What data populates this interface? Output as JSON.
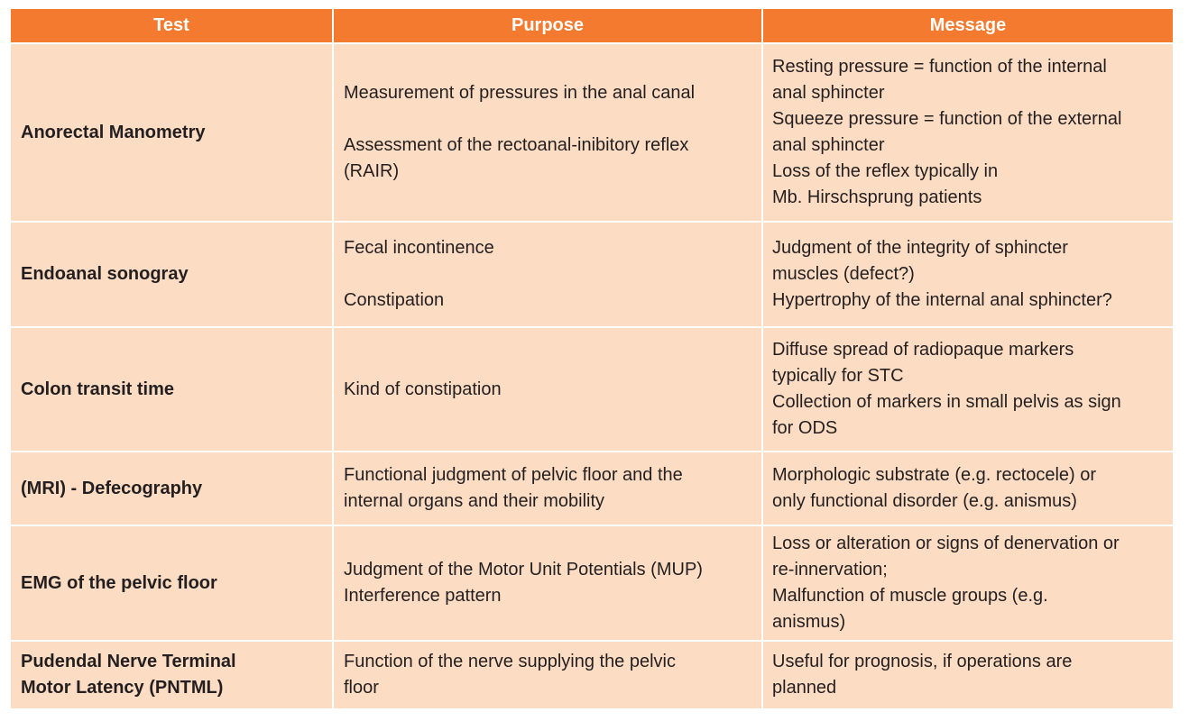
{
  "table": {
    "headers": {
      "test": "Test",
      "purpose": "Purpose",
      "message": "Message"
    },
    "rows": [
      {
        "test": [
          "Anorectal Manometry"
        ],
        "purpose_a": [
          "Measurement of pressures in the anal canal"
        ],
        "purpose_b": [
          "Assessment of the rectoanal-inibitory reflex",
          "(RAIR)"
        ],
        "message": [
          "Resting pressure = function of the internal",
          "anal sphincter",
          "Squeeze pressure =  function of the external",
          "anal sphincter",
          "Loss of the reflex typically in",
          "Mb. Hirschsprung patients"
        ]
      },
      {
        "test": [
          "Endoanal sonogray"
        ],
        "purpose_a": [
          "Fecal incontinence"
        ],
        "purpose_b": [
          "Constipation"
        ],
        "message": [
          "Judgment of the integrity of sphincter",
          "muscles (defect?)",
          "Hypertrophy of the internal anal sphincter?"
        ]
      },
      {
        "test": [
          "Colon transit time"
        ],
        "purpose": [
          "Kind of constipation"
        ],
        "message": [
          "Diffuse spread of radiopaque markers",
          "typically for STC",
          "Collection of markers in small pelvis as sign",
          "for ODS"
        ]
      },
      {
        "test": [
          "(MRI) - Defecography"
        ],
        "purpose": [
          "Functional judgment of pelvic floor and the",
          "internal organs and their mobility"
        ],
        "message": [
          "Morphologic substrate (e.g. rectocele) or",
          "only functional disorder (e.g. anismus)"
        ]
      },
      {
        "test": [
          "EMG of the pelvic floor"
        ],
        "purpose": [
          "Judgment of the Motor Unit Potentials (MUP)",
          "Interference pattern"
        ],
        "message": [
          "Loss or alteration or signs of denervation or",
          "re-innervation;",
          "Malfunction of muscle groups (e.g.",
          "anismus)"
        ]
      },
      {
        "test": [
          "Pudendal Nerve Terminal",
          "Motor Latency (PNTML)"
        ],
        "purpose": [
          "Function of the nerve supplying the pelvic",
          "floor"
        ],
        "message": [
          "Useful for prognosis, if operations are",
          "planned"
        ]
      }
    ]
  },
  "colors": {
    "header_bg": "#f47a2f",
    "header_text": "#ffffff",
    "cell_bg": "#fddcc4",
    "text": "#231f20"
  }
}
